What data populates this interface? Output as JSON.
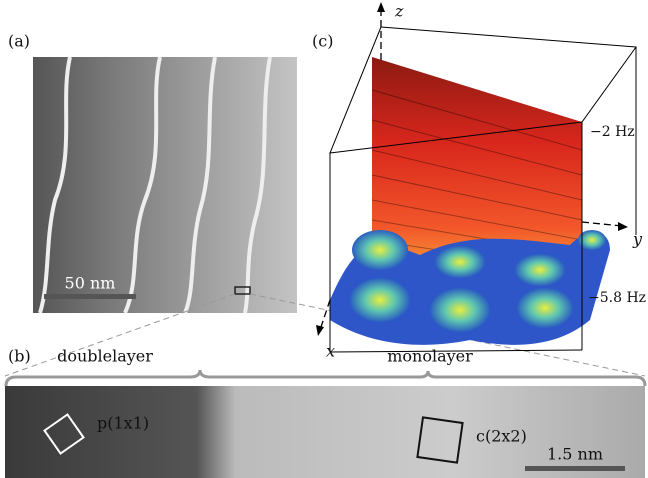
{
  "panels": [
    {
      "label": "(a)",
      "scale_bar": "50 nm"
    },
    {
      "label": "(b)",
      "regions": [
        "doublelayer",
        "monolayer"
      ],
      "annotations": [
        "p(1x1)",
        "c(2x2)"
      ],
      "scale_bar": "1.5 nm"
    },
    {
      "label": "(c)",
      "axes": {
        "x": "x",
        "y": "y",
        "z": "z"
      },
      "levels": [
        "−2 Hz",
        "−5.8 Hz"
      ]
    }
  ]
}
